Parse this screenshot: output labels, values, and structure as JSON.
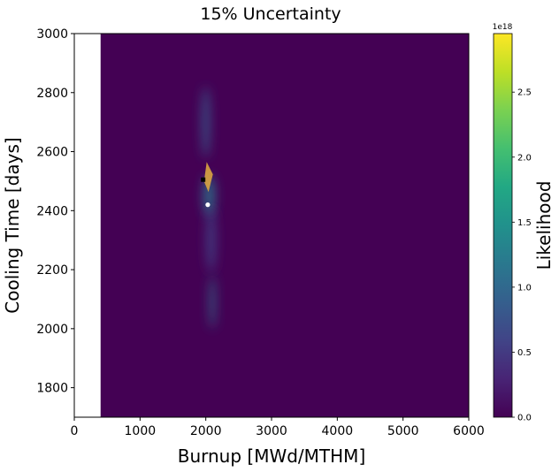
{
  "chart_data": {
    "type": "heatmap",
    "title": "15% Uncertainty",
    "xlabel": "Burnup [MWd/MTHM]",
    "ylabel": "Cooling Time [days]",
    "xlim": [
      0,
      6000
    ],
    "ylim": [
      1700,
      3000
    ],
    "xticks": [
      "0",
      "1000",
      "2000",
      "3000",
      "4000",
      "5000",
      "6000"
    ],
    "yticks": [
      "1800",
      "2000",
      "2200",
      "2400",
      "2600",
      "2800",
      "3000"
    ],
    "data_x_range": [
      400,
      6000
    ],
    "colorbar": {
      "label": "Likelihood",
      "colormap": "viridis",
      "min": 0.0,
      "max": 2.95,
      "ticks": [
        "0.0",
        "0.5",
        "1.0",
        "1.5",
        "2.0",
        "2.5"
      ],
      "offset_text": "1e18"
    },
    "colors": {
      "background": "#440154",
      "orange_patch": "#d9a441",
      "black_marker": "#000000",
      "white_marker": "#ffffff"
    },
    "blobs": [
      {
        "x": 2000,
        "y": 2700,
        "sx": 60,
        "sy": 120,
        "level": 0.55
      },
      {
        "x": 2050,
        "y": 2450,
        "sx": 90,
        "sy": 70,
        "level": 0.6
      },
      {
        "x": 2080,
        "y": 2300,
        "sx": 70,
        "sy": 110,
        "level": 0.35
      },
      {
        "x": 2100,
        "y": 2090,
        "sx": 40,
        "sy": 90,
        "level": 0.7
      }
    ],
    "markers": [
      {
        "type": "square",
        "color": "black",
        "x": 1960,
        "y": 2505
      },
      {
        "type": "circle",
        "color": "white",
        "x": 2030,
        "y": 2420
      }
    ]
  }
}
